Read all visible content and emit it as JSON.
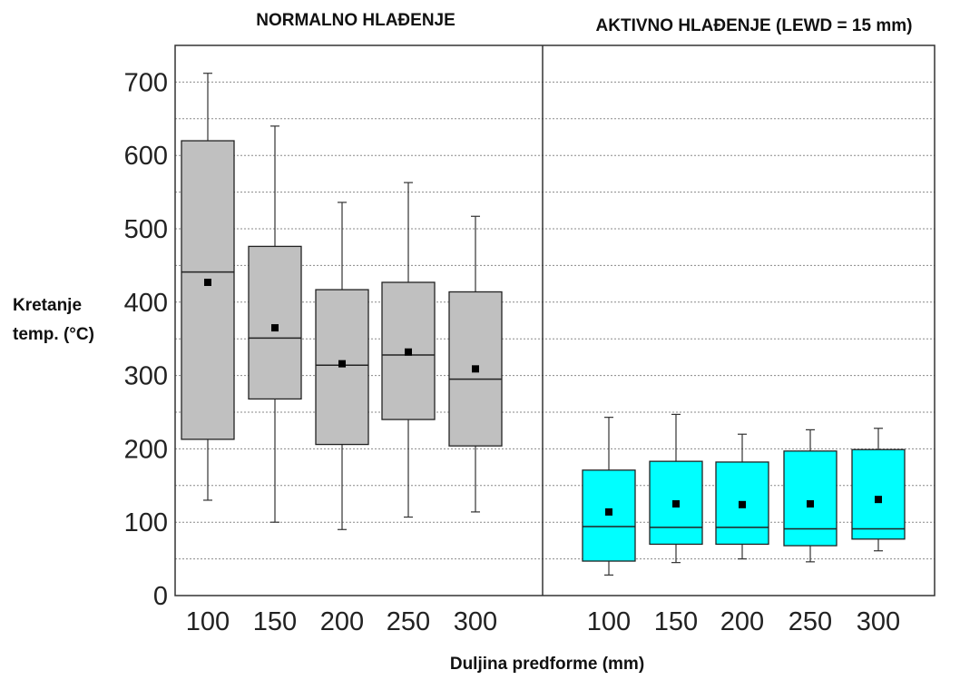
{
  "chart_data": {
    "type": "boxplot",
    "xlabel": "Duljina predforme (mm)",
    "ylabel_lines": [
      "Kretanje",
      "temp. (°C)"
    ],
    "ylim": [
      0,
      750
    ],
    "yticks": [
      0,
      100,
      200,
      300,
      400,
      500,
      600,
      700
    ],
    "grid": "dotted horizontal every 50",
    "categories": [
      "100",
      "150",
      "200",
      "250",
      "300"
    ],
    "panels": [
      {
        "title": "NORMALNO HLAĐENJE",
        "box_color": "#c0c0c0",
        "boxes": [
          {
            "category": "100",
            "min": 130,
            "q1": 213,
            "median": 441,
            "q3": 620,
            "max": 712,
            "mean": 427
          },
          {
            "category": "150",
            "min": 100,
            "q1": 268,
            "median": 351,
            "q3": 476,
            "max": 640,
            "mean": 365
          },
          {
            "category": "200",
            "min": 90,
            "q1": 206,
            "median": 314,
            "q3": 417,
            "max": 536,
            "mean": 316
          },
          {
            "category": "250",
            "min": 107,
            "q1": 240,
            "median": 328,
            "q3": 427,
            "max": 563,
            "mean": 332
          },
          {
            "category": "300",
            "min": 114,
            "q1": 204,
            "median": 295,
            "q3": 414,
            "max": 517,
            "mean": 309
          }
        ]
      },
      {
        "title": "AKTIVNO HLAĐENJE (LEWD = 15 mm)",
        "box_color": "#00ffff",
        "boxes": [
          {
            "category": "100",
            "min": 28,
            "q1": 47,
            "median": 94,
            "q3": 171,
            "max": 243,
            "mean": 114
          },
          {
            "category": "150",
            "min": 45,
            "q1": 70,
            "median": 93,
            "q3": 183,
            "max": 247,
            "mean": 125
          },
          {
            "category": "200",
            "min": 50,
            "q1": 70,
            "median": 93,
            "q3": 182,
            "max": 220,
            "mean": 124
          },
          {
            "category": "250",
            "min": 46,
            "q1": 68,
            "median": 91,
            "q3": 197,
            "max": 226,
            "mean": 125
          },
          {
            "category": "300",
            "min": 61,
            "q1": 77,
            "median": 91,
            "q3": 199,
            "max": 228,
            "mean": 131
          }
        ]
      }
    ]
  }
}
